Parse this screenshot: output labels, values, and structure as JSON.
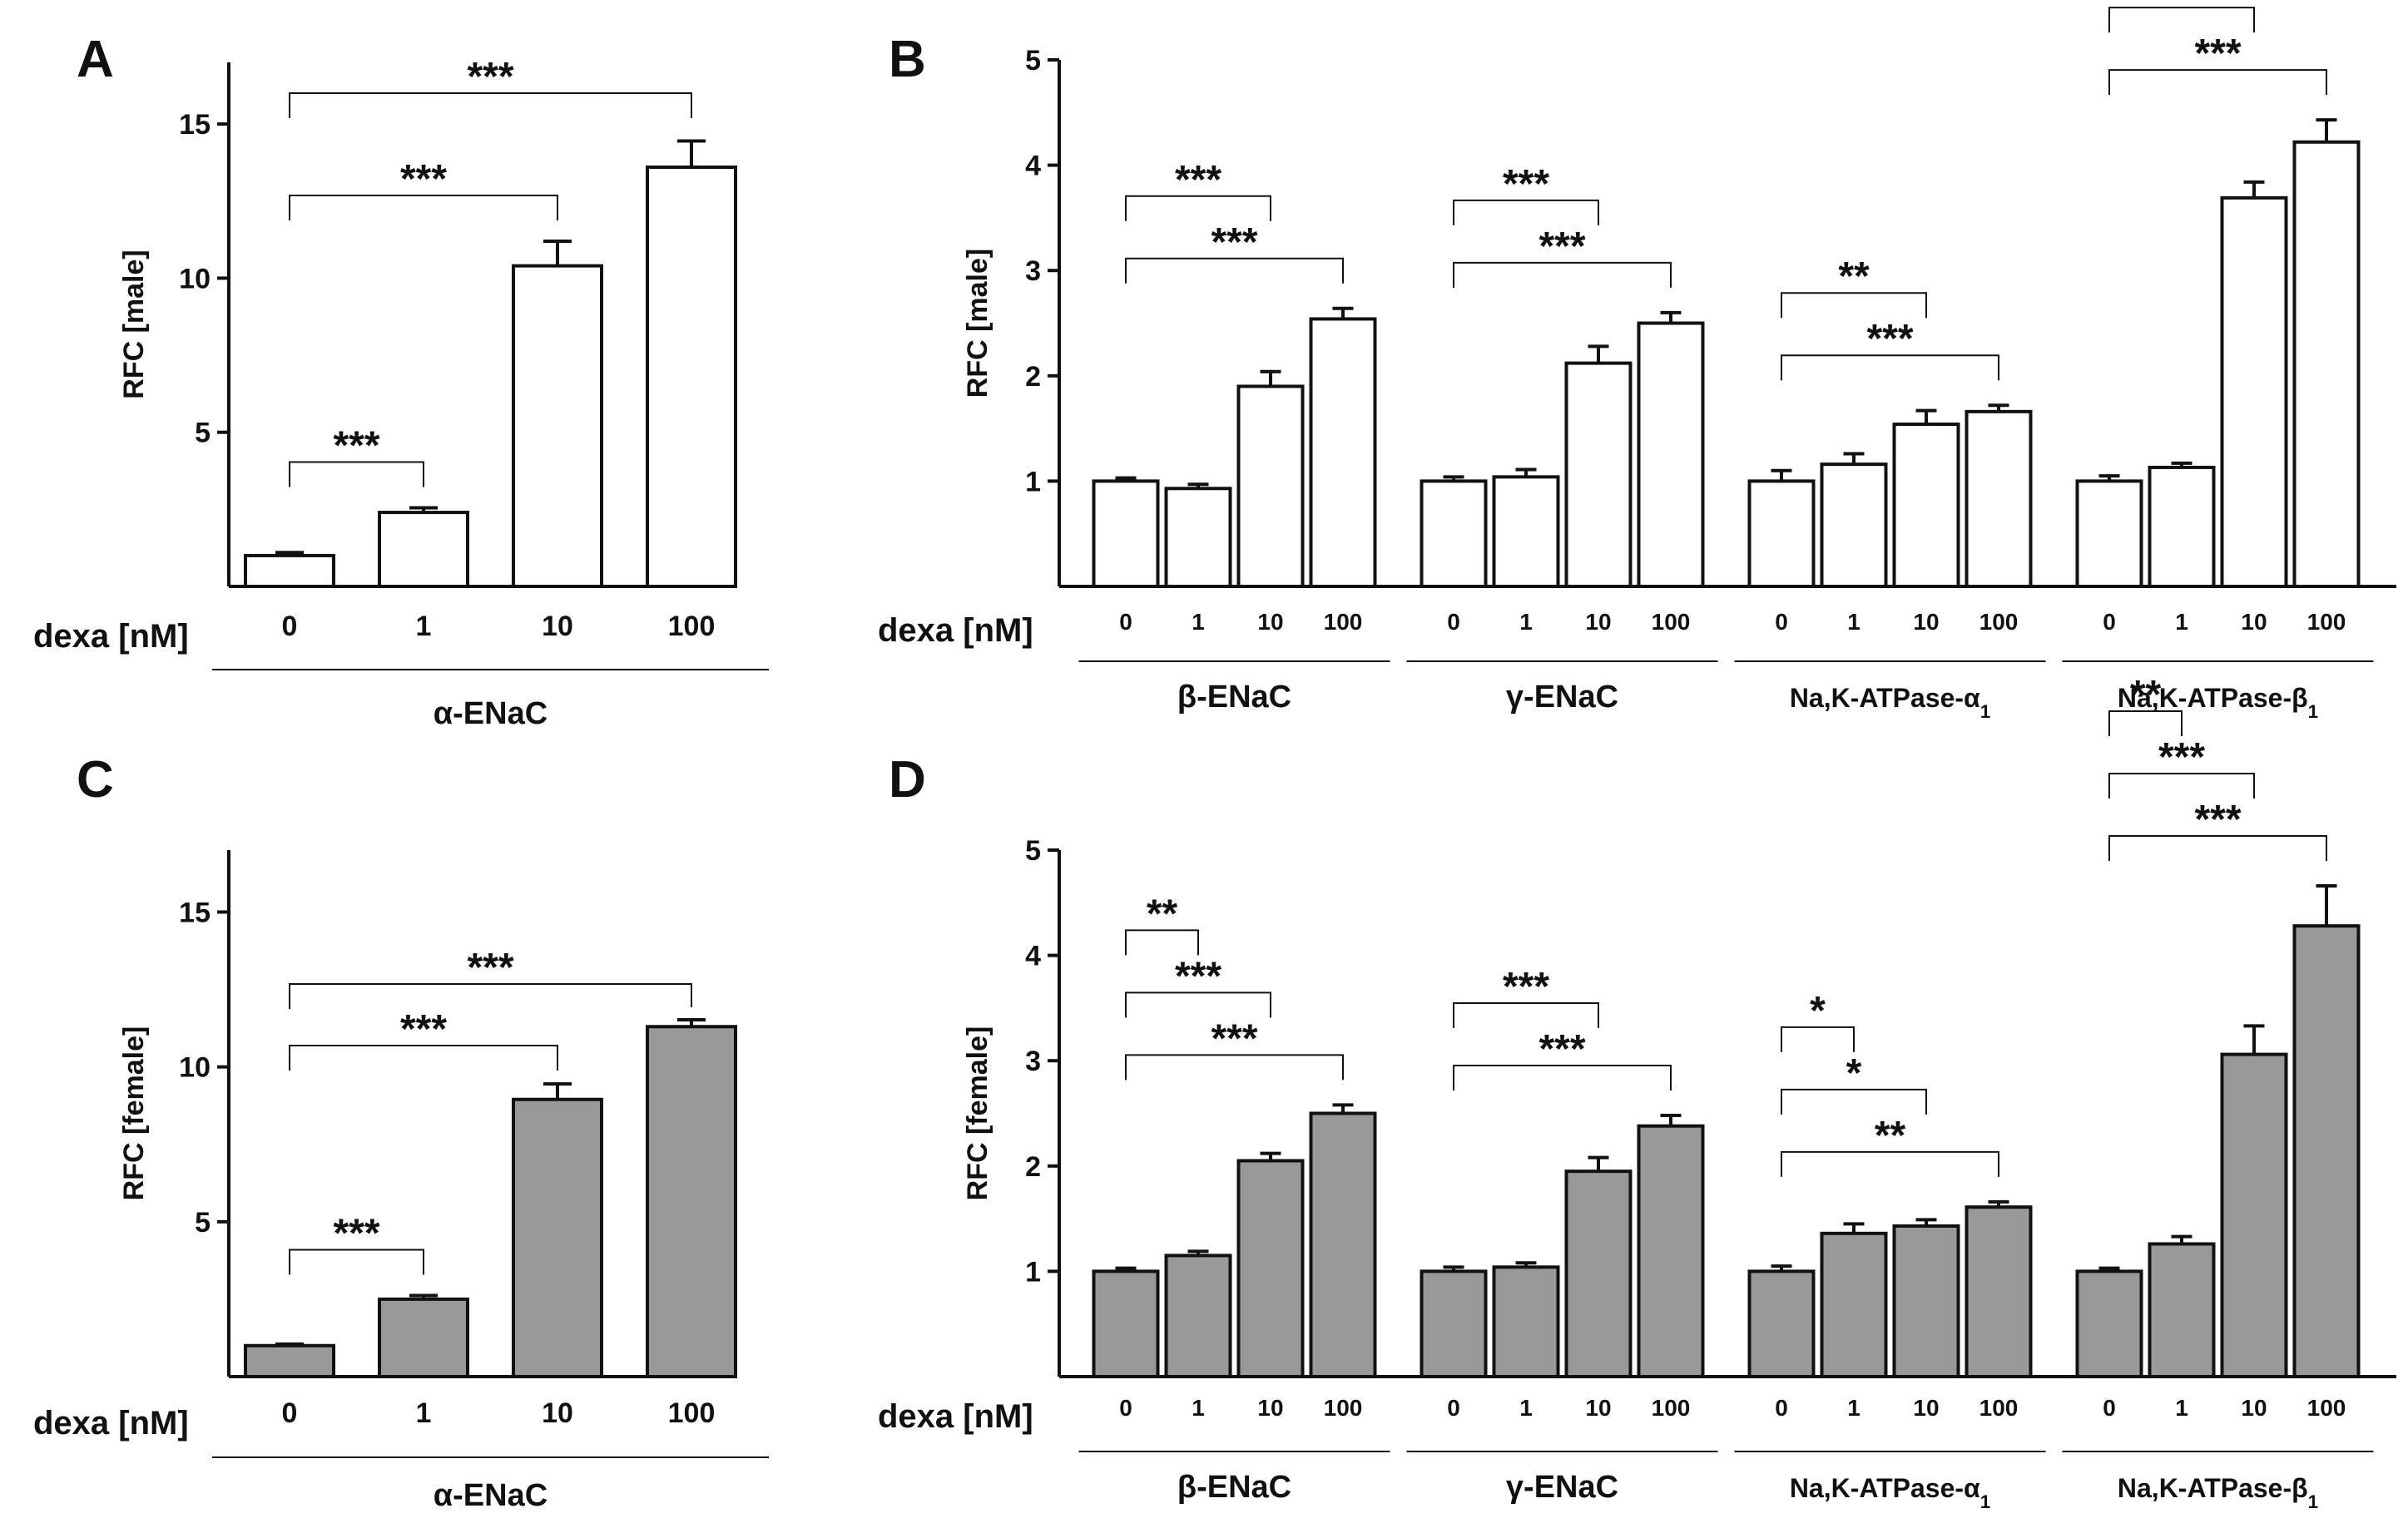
{
  "x_axis_label": "dexa [nM]",
  "chart_data": [
    {
      "panel": "A",
      "type": "bar",
      "sex": "male",
      "ylabel": "RFC [male]",
      "ylim": [
        0,
        17
      ],
      "yticks": [
        5,
        10,
        15
      ],
      "fill": "#ffffff",
      "groups": [
        {
          "name": "α-ENaC",
          "categories": [
            "0",
            "1",
            "10",
            "100"
          ],
          "values": [
            1.0,
            2.4,
            10.4,
            13.6
          ],
          "errors": [
            0.1,
            0.15,
            0.8,
            0.85
          ],
          "comparisons": [
            {
              "from": "0",
              "to": "1",
              "label": "***"
            },
            {
              "from": "0",
              "to": "10",
              "label": "***"
            },
            {
              "from": "0",
              "to": "100",
              "label": "***"
            }
          ]
        }
      ]
    },
    {
      "panel": "B",
      "type": "bar",
      "sex": "male",
      "ylabel": "RFC [male]",
      "ylim": [
        0,
        5
      ],
      "yticks": [
        1,
        2,
        3,
        4,
        5
      ],
      "fill": "#ffffff",
      "groups": [
        {
          "name": "β-ENaC",
          "categories": [
            "0",
            "1",
            "10",
            "100"
          ],
          "values": [
            1.0,
            0.93,
            1.9,
            2.54
          ],
          "errors": [
            0.03,
            0.04,
            0.14,
            0.1
          ],
          "comparisons": [
            {
              "from": "0",
              "to": "10",
              "label": "***"
            },
            {
              "from": "0",
              "to": "100",
              "label": "***"
            }
          ]
        },
        {
          "name": "γ-ENaC",
          "categories": [
            "0",
            "1",
            "10",
            "100"
          ],
          "values": [
            1.0,
            1.04,
            2.12,
            2.5
          ],
          "errors": [
            0.04,
            0.07,
            0.16,
            0.1
          ],
          "comparisons": [
            {
              "from": "0",
              "to": "10",
              "label": "***"
            },
            {
              "from": "0",
              "to": "100",
              "label": "***"
            }
          ]
        },
        {
          "name": "Na,K-ATPase-α1",
          "categories": [
            "0",
            "1",
            "10",
            "100"
          ],
          "values": [
            1.0,
            1.16,
            1.54,
            1.66
          ],
          "errors": [
            0.1,
            0.1,
            0.13,
            0.06
          ],
          "comparisons": [
            {
              "from": "0",
              "to": "10",
              "label": "**"
            },
            {
              "from": "0",
              "to": "100",
              "label": "***"
            }
          ]
        },
        {
          "name": "Na,K-ATPase-β1",
          "categories": [
            "0",
            "1",
            "10",
            "100"
          ],
          "values": [
            1.0,
            1.13,
            3.69,
            4.22
          ],
          "errors": [
            0.05,
            0.04,
            0.15,
            0.21
          ],
          "comparisons": [
            {
              "from": "0",
              "to": "10",
              "label": "***"
            },
            {
              "from": "0",
              "to": "100",
              "label": "***"
            }
          ]
        }
      ]
    },
    {
      "panel": "C",
      "type": "bar",
      "sex": "female",
      "ylabel": "RFC [female]",
      "ylim": [
        0,
        17
      ],
      "yticks": [
        5,
        10,
        15
      ],
      "fill": "#999999",
      "groups": [
        {
          "name": "α-ENaC",
          "categories": [
            "0",
            "1",
            "10",
            "100"
          ],
          "values": [
            1.0,
            2.5,
            8.95,
            11.3
          ],
          "errors": [
            0.05,
            0.12,
            0.5,
            0.22
          ],
          "comparisons": [
            {
              "from": "0",
              "to": "1",
              "label": "***"
            },
            {
              "from": "0",
              "to": "10",
              "label": "***"
            },
            {
              "from": "0",
              "to": "100",
              "label": "***"
            }
          ]
        }
      ]
    },
    {
      "panel": "D",
      "type": "bar",
      "sex": "female",
      "ylabel": "RFC [female]",
      "ylim": [
        0,
        5
      ],
      "yticks": [
        1,
        2,
        3,
        4,
        5
      ],
      "fill": "#999999",
      "groups": [
        {
          "name": "β-ENaC",
          "categories": [
            "0",
            "1",
            "10",
            "100"
          ],
          "values": [
            1.0,
            1.15,
            2.05,
            2.5
          ],
          "errors": [
            0.03,
            0.04,
            0.07,
            0.08
          ],
          "comparisons": [
            {
              "from": "0",
              "to": "1",
              "label": "**"
            },
            {
              "from": "0",
              "to": "10",
              "label": "***"
            },
            {
              "from": "0",
              "to": "100",
              "label": "***"
            }
          ]
        },
        {
          "name": "γ-ENaC",
          "categories": [
            "0",
            "1",
            "10",
            "100"
          ],
          "values": [
            1.0,
            1.04,
            1.95,
            2.38
          ],
          "errors": [
            0.04,
            0.04,
            0.13,
            0.1
          ],
          "comparisons": [
            {
              "from": "0",
              "to": "10",
              "label": "***"
            },
            {
              "from": "0",
              "to": "100",
              "label": "***"
            }
          ]
        },
        {
          "name": "Na,K-ATPase-α1",
          "categories": [
            "0",
            "1",
            "10",
            "100"
          ],
          "values": [
            1.0,
            1.36,
            1.43,
            1.61
          ],
          "errors": [
            0.05,
            0.09,
            0.06,
            0.05
          ],
          "comparisons": [
            {
              "from": "0",
              "to": "1",
              "label": "*"
            },
            {
              "from": "0",
              "to": "10",
              "label": "*"
            },
            {
              "from": "0",
              "to": "100",
              "label": "**"
            }
          ]
        },
        {
          "name": "Na,K-ATPase-β1",
          "categories": [
            "0",
            "1",
            "10",
            "100"
          ],
          "values": [
            1.0,
            1.26,
            3.06,
            4.28
          ],
          "errors": [
            0.03,
            0.07,
            0.27,
            0.38
          ],
          "comparisons": [
            {
              "from": "0",
              "to": "1",
              "label": "**"
            },
            {
              "from": "0",
              "to": "10",
              "label": "***"
            },
            {
              "from": "0",
              "to": "100",
              "label": "***"
            }
          ]
        }
      ]
    }
  ]
}
